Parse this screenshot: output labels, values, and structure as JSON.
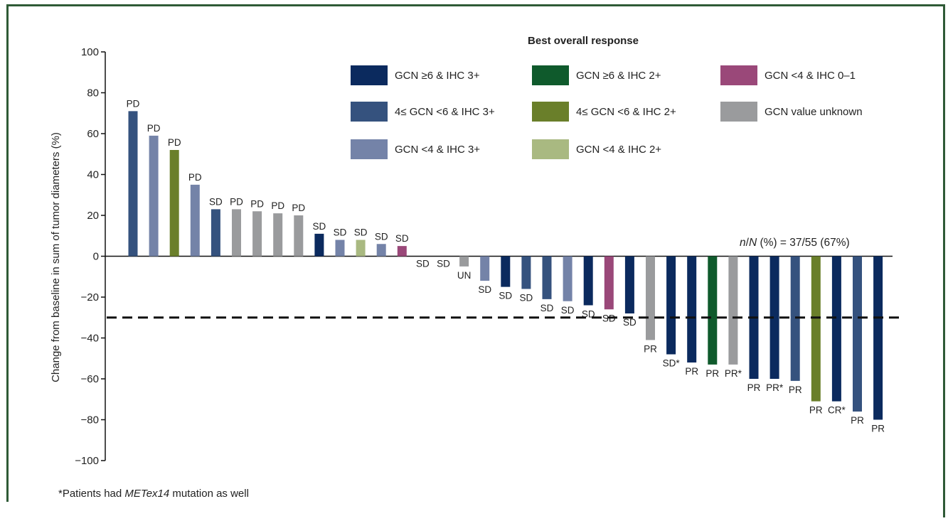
{
  "colors": {
    "gcn6_ihc3": "#0b2a5e",
    "gcn4to6_ihc3": "#35527e",
    "gcn4_ihc3": "#7483a8",
    "gcn6_ihc2": "#0f5a2c",
    "gcn4to6_ihc2": "#6a7f2a",
    "gcn4_ihc2": "#a9b981",
    "gcn4_ihc01": "#9a4879",
    "unknown": "#9a9b9d",
    "frame": "#2f5a36"
  },
  "legend": {
    "title": "Best overall response",
    "items": [
      {
        "label": "GCN ≥6 & IHC 3+",
        "color_key": "gcn6_ihc3"
      },
      {
        "label": "4≤ GCN <6 & IHC 3+",
        "color_key": "gcn4to6_ihc3"
      },
      {
        "label": "GCN <4 & IHC 3+",
        "color_key": "gcn4_ihc3"
      },
      {
        "label": "GCN ≥6 & IHC 2+",
        "color_key": "gcn6_ihc2"
      },
      {
        "label": "4≤ GCN <6 & IHC 2+",
        "color_key": "gcn4to6_ihc2"
      },
      {
        "label": "GCN <4 & IHC 2+",
        "color_key": "gcn4_ihc2"
      },
      {
        "label": "GCN <4 & IHC 0–1",
        "color_key": "gcn4_ihc01"
      },
      {
        "label": "GCN value unknown",
        "color_key": "unknown"
      }
    ]
  },
  "annotation": {
    "n_italic": "n",
    "slash": "/",
    "N_italic": "N",
    "rest": " (%) = 37/55 (67%)"
  },
  "footnote": {
    "prefix": "*Patients had ",
    "italic": "METex14",
    "suffix": " mutation as well"
  },
  "chart_data": {
    "type": "bar",
    "ylabel": "Change from baseline in sum of tumor diameters (%)",
    "ylim": [
      -100,
      100
    ],
    "yticks": [
      100,
      80,
      60,
      40,
      20,
      0,
      -20,
      -40,
      -60,
      -80,
      -100
    ],
    "ytick_labels": [
      "100",
      "80",
      "60",
      "40",
      "20",
      "0",
      "−20",
      "−40",
      "−60",
      "−80",
      "−100"
    ],
    "threshold": -30,
    "bars": [
      {
        "value": 71,
        "label": "PD",
        "group": "gcn4to6_ihc3"
      },
      {
        "value": 59,
        "label": "PD",
        "group": "gcn4_ihc3"
      },
      {
        "value": 52,
        "label": "PD",
        "group": "gcn4to6_ihc2"
      },
      {
        "value": 35,
        "label": "PD",
        "group": "gcn4_ihc3"
      },
      {
        "value": 23,
        "label": "SD",
        "group": "gcn4to6_ihc3"
      },
      {
        "value": 23,
        "label": "PD",
        "group": "unknown"
      },
      {
        "value": 22,
        "label": "PD",
        "group": "unknown"
      },
      {
        "value": 21,
        "label": "PD",
        "group": "unknown"
      },
      {
        "value": 20,
        "label": "PD",
        "group": "unknown"
      },
      {
        "value": 11,
        "label": "SD",
        "group": "gcn6_ihc3"
      },
      {
        "value": 8,
        "label": "SD",
        "group": "gcn4_ihc3"
      },
      {
        "value": 8,
        "label": "SD",
        "group": "gcn4_ihc2"
      },
      {
        "value": 6,
        "label": "SD",
        "group": "gcn4_ihc3"
      },
      {
        "value": 5,
        "label": "SD",
        "group": "gcn4_ihc01"
      },
      {
        "value": 0,
        "label": "SD",
        "group": "gcn4_ihc3"
      },
      {
        "value": 0,
        "label": "SD",
        "group": "gcn4_ihc3"
      },
      {
        "value": -5,
        "label": "UN",
        "group": "unknown"
      },
      {
        "value": -12,
        "label": "SD",
        "group": "gcn4_ihc3"
      },
      {
        "value": -15,
        "label": "SD",
        "group": "gcn6_ihc3"
      },
      {
        "value": -16,
        "label": "SD",
        "group": "gcn4to6_ihc3"
      },
      {
        "value": -21,
        "label": "SD",
        "group": "gcn4to6_ihc3"
      },
      {
        "value": -22,
        "label": "SD",
        "group": "gcn4_ihc3"
      },
      {
        "value": -24,
        "label": "SD",
        "group": "gcn6_ihc3"
      },
      {
        "value": -26,
        "label": "SD",
        "group": "gcn4_ihc01"
      },
      {
        "value": -28,
        "label": "SD",
        "group": "gcn6_ihc3"
      },
      {
        "value": -41,
        "label": "PR",
        "group": "unknown"
      },
      {
        "value": -48,
        "label": "SD*",
        "group": "gcn6_ihc3"
      },
      {
        "value": -52,
        "label": "PR",
        "group": "gcn6_ihc3"
      },
      {
        "value": -53,
        "label": "PR",
        "group": "gcn6_ihc2"
      },
      {
        "value": -53,
        "label": "PR*",
        "group": "unknown"
      },
      {
        "value": -60,
        "label": "PR",
        "group": "gcn6_ihc3"
      },
      {
        "value": -60,
        "label": "PR*",
        "group": "gcn6_ihc3"
      },
      {
        "value": -61,
        "label": "PR",
        "group": "gcn4to6_ihc3"
      },
      {
        "value": -71,
        "label": "PR",
        "group": "gcn4to6_ihc2"
      },
      {
        "value": -71,
        "label": "CR*",
        "group": "gcn6_ihc3"
      },
      {
        "value": -76,
        "label": "PR",
        "group": "gcn4to6_ihc3"
      },
      {
        "value": -80,
        "label": "PR",
        "group": "gcn6_ihc3"
      }
    ]
  }
}
